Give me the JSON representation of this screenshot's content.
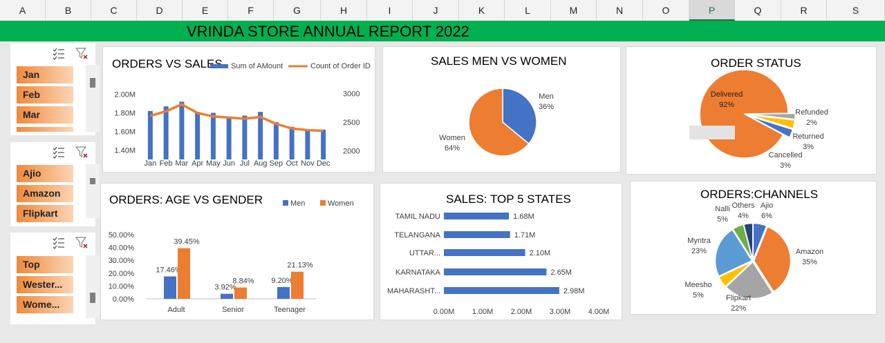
{
  "columns": [
    "A",
    "B",
    "C",
    "D",
    "E",
    "F",
    "G",
    "H",
    "I",
    "J",
    "K",
    "L",
    "M",
    "N",
    "O",
    "P",
    "Q",
    "R",
    "S"
  ],
  "selected_column": "P",
  "banner": {
    "title": "VRINDA STORE ANNUAL REPORT 2022",
    "color": "#00b050"
  },
  "colors": {
    "blue": "#4472c4",
    "orange": "#ed7d31",
    "gray": "#a5a5a5",
    "gold": "#ffc000",
    "lightblue": "#5b9bd5",
    "green": "#70ad47",
    "navy": "#264478"
  },
  "slicers": [
    {
      "items": [
        "Jan",
        "Feb",
        "Mar"
      ],
      "icons": [
        "multi-select-icon",
        "clear-filter-icon"
      ]
    },
    {
      "items": [
        "Ajio",
        "Amazon",
        "Flipkart"
      ],
      "icons": [
        "multi-select-icon",
        "clear-filter-icon"
      ]
    },
    {
      "items": [
        "Top",
        "Wester...",
        "Wome..."
      ],
      "icons": [
        "multi-select-icon",
        "clear-filter-icon"
      ]
    }
  ],
  "chart_data": [
    {
      "type": "bar",
      "title": "ORDERS VS SALES",
      "categories": [
        "Jan",
        "Feb",
        "Mar",
        "Apr",
        "May",
        "Jun",
        "Jul",
        "Aug",
        "Sep",
        "Oct",
        "Nov",
        "Dec"
      ],
      "series": [
        {
          "name": "Sum of AMount",
          "type": "bar",
          "axis": "left",
          "values": [
            1.82,
            1.87,
            1.92,
            1.81,
            1.8,
            1.76,
            1.77,
            1.81,
            1.7,
            1.65,
            1.62,
            1.62
          ]
        },
        {
          "name": "Count of Order ID",
          "type": "line",
          "axis": "right",
          "values": [
            2610,
            2690,
            2810,
            2660,
            2600,
            2580,
            2560,
            2590,
            2470,
            2390,
            2360,
            2350
          ]
        }
      ],
      "ylim": [
        1.3,
        2.1
      ],
      "y_ticks": [
        "1.40M",
        "1.60M",
        "1.80M",
        "2.00M"
      ],
      "y2lim": [
        1850,
        3150
      ],
      "y2_ticks": [
        "2000",
        "2500",
        "3000"
      ],
      "legend": "top"
    },
    {
      "type": "pie",
      "title": "SALES MEN VS WOMEN",
      "labels": [
        "Men",
        "Women"
      ],
      "values": [
        36,
        64
      ],
      "value_labels": [
        "36%",
        "64%"
      ]
    },
    {
      "type": "pie",
      "title": "ORDER STATUS",
      "labels": [
        "Delivered",
        "Refunded",
        "Returned",
        "Cancelled"
      ],
      "values": [
        92,
        2,
        3,
        3
      ],
      "value_labels": [
        "92%",
        "2%",
        "3%",
        "3%"
      ]
    },
    {
      "type": "bar",
      "title": "ORDERS: AGE VS GENDER",
      "categories": [
        "Adult",
        "Senior",
        "Teenager"
      ],
      "series": [
        {
          "name": "Men",
          "values": [
            17.46,
            3.92,
            9.2
          ],
          "labels": [
            "17.46%",
            "3.92%",
            "9.20%"
          ]
        },
        {
          "name": "Women",
          "values": [
            39.45,
            8.84,
            21.13
          ],
          "labels": [
            "39.45%",
            "8.84%",
            "21.13%"
          ]
        }
      ],
      "ylim": [
        0,
        50
      ],
      "y_ticks": [
        "0.00%",
        "10.00%",
        "20.00%",
        "30.00%",
        "40.00%",
        "50.00%"
      ],
      "legend": "top-right"
    },
    {
      "type": "bar",
      "orientation": "horizontal",
      "title": "SALES: TOP 5 STATES",
      "categories": [
        "TAMIL NADU",
        "TELANGANA",
        "UTTAR...",
        "KARNATAKA",
        "MAHARASHT..."
      ],
      "values": [
        1.68,
        1.71,
        2.1,
        2.65,
        2.98
      ],
      "value_labels": [
        "1.68M",
        "1.71M",
        "2.10M",
        "2.65M",
        "2.98M"
      ],
      "xlim": [
        0,
        4
      ],
      "x_ticks": [
        "0.00M",
        "1.00M",
        "2.00M",
        "3.00M",
        "4.00M"
      ]
    },
    {
      "type": "pie",
      "title": "ORDERS:CHANNELS",
      "labels": [
        "Ajio",
        "Amazon",
        "Flipkart",
        "Meesho",
        "Myntra",
        "Nalli",
        "Others"
      ],
      "values": [
        6,
        35,
        22,
        5,
        23,
        5,
        4
      ],
      "value_labels": [
        "6%",
        "35%",
        "22%",
        "5%",
        "23%",
        "5%",
        "4%"
      ]
    }
  ]
}
